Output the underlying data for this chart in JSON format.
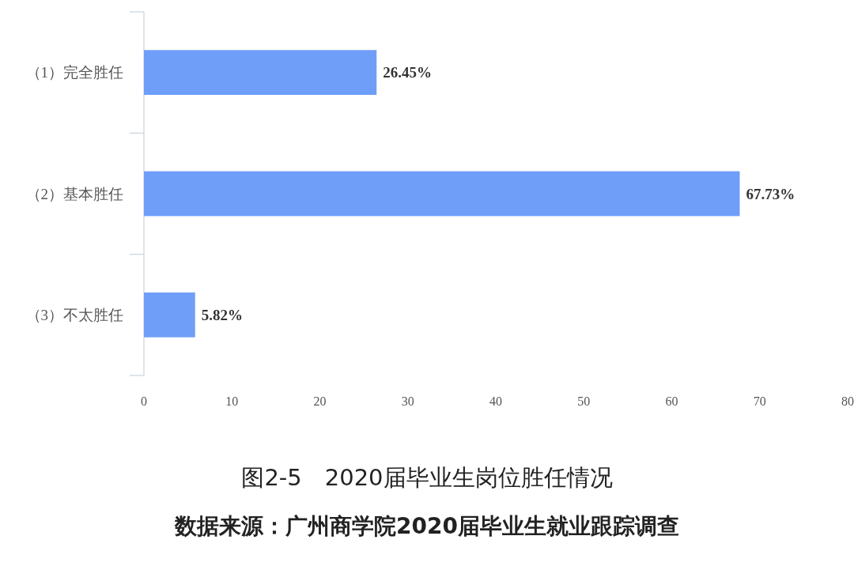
{
  "chart_data": {
    "type": "bar",
    "orientation": "horizontal",
    "title": "图2-5　2020届毕业生岗位胜任情况",
    "categories": [
      "（1）完全胜任",
      "（2）基本胜任",
      "（3）不太胜任"
    ],
    "values": [
      26.45,
      67.73,
      5.82
    ],
    "value_labels": [
      "26.45%",
      "67.73%",
      "5.82%"
    ],
    "color": "#6f9ef8",
    "xlim": [
      0,
      80
    ],
    "xticks": [
      0,
      10,
      20,
      30,
      40,
      50,
      60,
      70,
      80
    ],
    "grid": false,
    "annotations": [
      "数据来源：广州商学院2020届毕业生就业跟踪调查"
    ]
  }
}
